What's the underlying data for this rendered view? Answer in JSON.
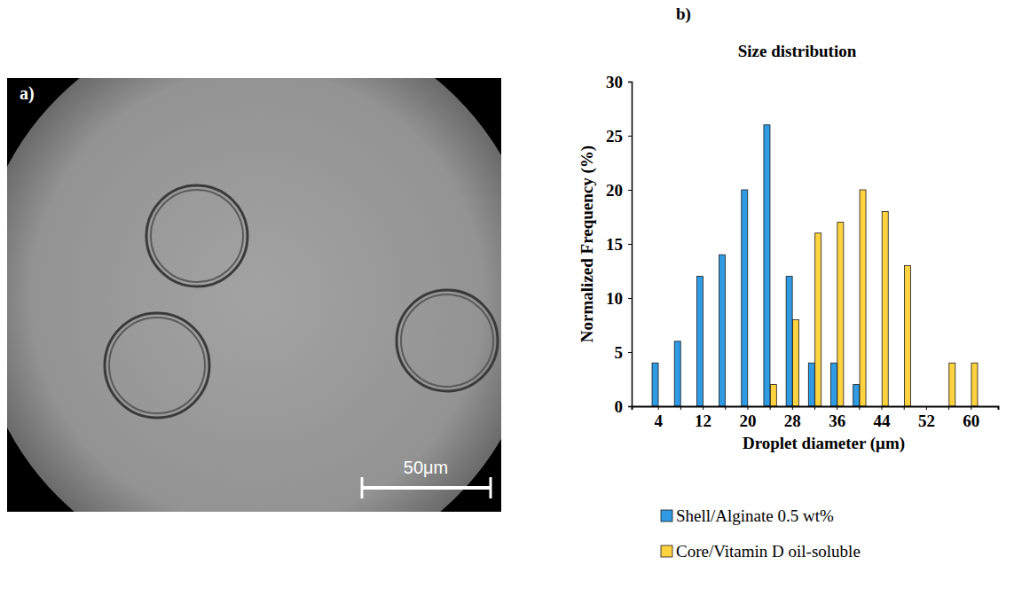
{
  "figure": {
    "panel_labels": [
      "a)",
      "b)"
    ],
    "scale_bar_label": "50μm"
  },
  "chart_data": {
    "type": "bar",
    "title": "Size distribution",
    "x_label": "Droplet diameter (μm)",
    "y_label": "Normalized Frequency (%)",
    "categories": [
      4,
      null,
      12,
      null,
      20,
      null,
      28,
      null,
      36,
      null,
      44,
      null,
      52,
      null,
      60
    ],
    "series": [
      {
        "name": "Shell/Alginate 0.5 wt%",
        "color": "#2f9be4",
        "values": [
          4,
          6,
          12,
          14,
          20,
          26,
          12,
          4,
          4,
          2,
          0,
          0,
          0,
          0,
          0
        ]
      },
      {
        "name": "Core/Vitamin D oil-soluble",
        "color": "#ffd23f",
        "values": [
          0,
          0,
          0,
          0,
          0,
          2,
          8,
          16,
          17,
          20,
          18,
          13,
          0,
          4,
          4
        ]
      }
    ],
    "ylim": [
      0,
      30
    ],
    "yticks": [
      0,
      5,
      10,
      15,
      20,
      25,
      30
    ],
    "grid": false,
    "legend": "bottom"
  }
}
